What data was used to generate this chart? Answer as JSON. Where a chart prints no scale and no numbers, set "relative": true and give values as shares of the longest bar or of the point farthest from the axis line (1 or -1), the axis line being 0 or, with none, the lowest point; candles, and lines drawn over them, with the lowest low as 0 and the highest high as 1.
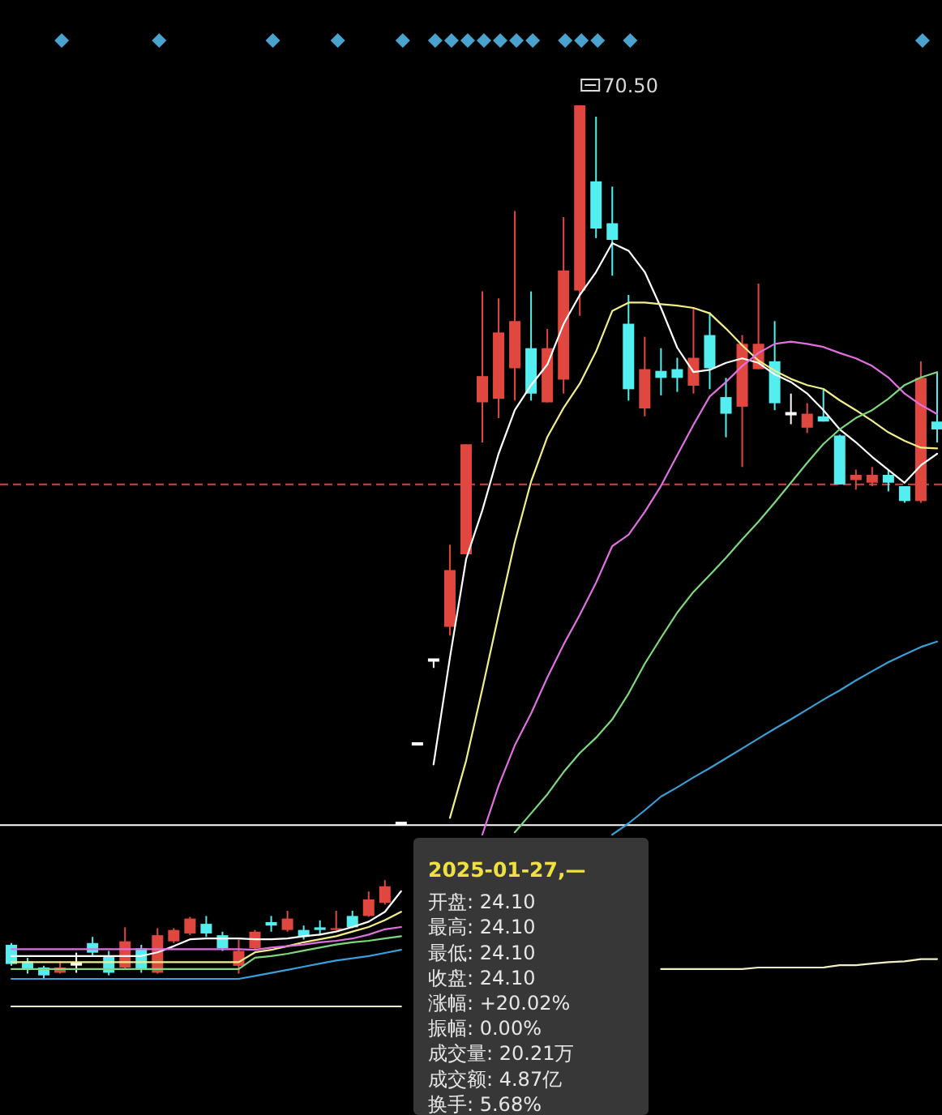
{
  "chart_data": [
    {
      "type": "candlestick",
      "relative": true,
      "categories": [
        null,
        null,
        null,
        null,
        null,
        null,
        null,
        null,
        null,
        null,
        null,
        null,
        null,
        null,
        null,
        null,
        null,
        null,
        null,
        null,
        null,
        null,
        null,
        null,
        null,
        null,
        null,
        null,
        null,
        null,
        null,
        null,
        null,
        null,
        null,
        null,
        null,
        null,
        null,
        null,
        null,
        null,
        null,
        null,
        null,
        null,
        null,
        null,
        null,
        null,
        null,
        null,
        null,
        null,
        null,
        null,
        null,
        null
      ],
      "ohlc": [
        [
          0.039,
          0.041,
          0.015,
          0.017
        ],
        [
          0.02,
          0.024,
          0.006,
          0.011
        ],
        [
          0.013,
          0.015,
          0,
          0.004
        ],
        [
          0.007,
          0.02,
          0.006,
          0.013
        ],
        [
          0.017,
          0.03,
          0.007,
          0.017
        ],
        [
          0.041,
          0.048,
          0.026,
          0.03
        ],
        [
          0.026,
          0.032,
          0.004,
          0.007
        ],
        [
          0.013,
          0.059,
          0.011,
          0.043
        ],
        [
          0.035,
          0.039,
          0.007,
          0.011
        ],
        [
          0.007,
          0.058,
          0.006,
          0.05
        ],
        [
          0.043,
          0.058,
          0.041,
          0.056
        ],
        [
          0.052,
          0.071,
          0.05,
          0.069
        ],
        [
          0.063,
          0.072,
          0.048,
          0.052
        ],
        [
          0.05,
          0.054,
          0.032,
          0.035
        ],
        [
          0.015,
          0.045,
          0.006,
          0.032
        ],
        [
          0.035,
          0.056,
          0.033,
          0.054
        ],
        [
          0.065,
          0.072,
          0.054,
          0.061
        ],
        [
          0.056,
          0.078,
          0.054,
          0.069
        ],
        [
          0.056,
          0.061,
          0.045,
          0.048
        ],
        [
          0.059,
          0.067,
          0.05,
          0.056
        ],
        [
          0.056,
          0.078,
          0.056,
          0.058
        ],
        [
          0.072,
          0.078,
          0.058,
          0.059
        ],
        [
          0.072,
          0.1,
          0.071,
          0.091
        ],
        [
          0.087,
          0.113,
          0.085,
          0.106
        ],
        [
          0.178,
          0.178,
          0.178,
          0.178
        ],
        [
          0.269,
          0.269,
          0.269,
          0.269
        ],
        [
          0.365,
          0.365,
          0.356,
          0.365
        ],
        [
          0.403,
          0.497,
          0.393,
          0.468
        ],
        [
          0.486,
          0.612,
          0.486,
          0.612
        ],
        [
          0.66,
          0.787,
          0.614,
          0.69
        ],
        [
          0.664,
          0.779,
          0.642,
          0.74
        ],
        [
          0.699,
          0.879,
          0.662,
          0.753
        ],
        [
          0.722,
          0.787,
          0.662,
          0.67
        ],
        [
          0.66,
          0.744,
          0.66,
          0.722
        ],
        [
          0.686,
          0.872,
          0.67,
          0.811
        ],
        [
          0.788,
          1,
          0.759,
          1
        ],
        [
          0.913,
          0.987,
          0.848,
          0.859
        ],
        [
          0.865,
          0.907,
          0.805,
          0.846
        ],
        [
          0.75,
          0.783,
          0.662,
          0.675
        ],
        [
          0.653,
          0.735,
          0.644,
          0.698
        ],
        [
          0.696,
          0.722,
          0.668,
          0.688
        ],
        [
          0.698,
          0.711,
          0.672,
          0.688
        ],
        [
          0.679,
          0.768,
          0.67,
          0.711
        ],
        [
          0.737,
          0.763,
          0.675,
          0.699
        ],
        [
          0.666,
          0.688,
          0.62,
          0.647
        ],
        [
          0.655,
          0.737,
          0.586,
          0.727
        ],
        [
          0.698,
          0.796,
          0.698,
          0.727
        ],
        [
          0.707,
          0.753,
          0.651,
          0.659
        ],
        [
          0.647,
          0.67,
          0.635,
          0.647
        ],
        [
          0.631,
          0.659,
          0.625,
          0.647
        ],
        [
          0.644,
          0.675,
          0.638,
          0.638
        ],
        [
          0.622,
          0.623,
          0.566,
          0.566
        ],
        [
          0.571,
          0.583,
          0.56,
          0.577
        ],
        [
          0.568,
          0.586,
          0.564,
          0.577
        ],
        [
          0.577,
          0.583,
          0.558,
          0.568
        ],
        [
          0.564,
          0.564,
          0.545,
          0.547
        ],
        [
          0.547,
          0.707,
          0.545,
          0.688
        ],
        [
          0.638,
          0.694,
          0.614,
          0.629
        ]
      ],
      "ref_lines": [
        {
          "axis": "y",
          "value": 0.566,
          "color": "#c8484a",
          "line_style": "dashed"
        },
        {
          "axis": "y",
          "value": 0.176,
          "color": "#ffffff",
          "line_style": "solid"
        }
      ],
      "annotations": [
        "70.50",
        "2025-01-27,—",
        "开盘: 24.10",
        "最高: 24.10",
        "最低: 24.10",
        "收盘: 24.10",
        "涨幅: +20.02%",
        "振幅: 0.00%",
        "成交量: 20.21万",
        "成交额: 4.87亿",
        "换手: 5.68%"
      ]
    },
    {
      "type": "line",
      "relative": true,
      "categories": [
        null,
        null,
        null,
        null,
        null,
        null,
        null,
        null,
        null,
        null,
        null,
        null,
        null,
        null,
        null,
        null,
        null,
        null,
        null,
        null,
        null,
        null,
        null,
        null,
        null,
        null,
        null,
        null,
        null,
        null,
        null,
        null,
        null,
        null,
        null,
        null,
        null,
        null,
        null,
        null,
        null,
        null,
        null,
        null,
        null,
        null,
        null,
        null,
        null,
        null,
        null,
        null,
        null,
        null,
        null,
        null,
        null,
        null
      ],
      "series": [
        {
          "color": "#ffffff",
          "values": [
            0.066,
            0.066,
            0.066,
            0.066,
            0.066,
            0.066,
            0.066,
            0.066,
            0.066,
            0.071,
            0.079,
            0.088,
            0.089,
            0.089,
            0.089,
            0.088,
            0.088,
            0.089,
            0.092,
            0.094,
            0.098,
            0.104,
            0.111,
            0.124,
            0.151,
            null,
            0.317,
            0.457,
            0.586,
            0.65,
            0.724,
            0.781,
            0.814,
            0.841,
            0.894,
            0.932,
            0.962,
            1,
            0.99,
            0.962,
            0.915,
            0.863,
            0.831,
            0.834,
            0.843,
            0.849,
            0.843,
            0.828,
            0.818,
            0.803,
            0.781,
            0.756,
            0.739,
            0.72,
            0.703,
            0.686,
            0.709,
            0.724
          ]
        },
        {
          "color": "#f2ee8a",
          "values": [
            0.058,
            0.058,
            0.058,
            0.058,
            0.058,
            0.058,
            0.058,
            0.058,
            0.058,
            0.058,
            0.058,
            0.058,
            0.058,
            0.058,
            0.058,
            0.071,
            0.074,
            0.079,
            0.084,
            0.088,
            0.092,
            0.098,
            0.104,
            0.113,
            0.124,
            null,
            null,
            0.247,
            0.322,
            0.416,
            0.513,
            0.608,
            0.688,
            0.746,
            0.784,
            0.816,
            0.858,
            0.911,
            0.922,
            0.922,
            0.92,
            0.918,
            0.915,
            0.908,
            0.888,
            0.866,
            0.846,
            0.833,
            0.822,
            0.814,
            0.809,
            0.794,
            0.781,
            0.767,
            0.752,
            0.741,
            0.732,
            0.731
          ]
        },
        {
          "color": "#e070e0",
          "values": [
            0.075,
            0.075,
            0.075,
            0.075,
            0.075,
            0.075,
            0.075,
            0.075,
            0.075,
            0.075,
            0.075,
            0.075,
            0.075,
            0.075,
            0.075,
            0.074,
            0.077,
            0.079,
            0.081,
            0.084,
            0.086,
            0.089,
            0.094,
            0.101,
            0.104,
            null,
            null,
            null,
            null,
            0.225,
            0.289,
            0.342,
            0.384,
            0.431,
            0.474,
            0.513,
            0.555,
            0.603,
            0.618,
            0.648,
            0.682,
            0.722,
            0.762,
            0.799,
            0.818,
            0.839,
            0.856,
            0.868,
            0.871,
            0.868,
            0.864,
            0.856,
            0.849,
            0.839,
            0.824,
            0.803,
            0.788,
            0.776
          ]
        },
        {
          "color": "#7ed87e",
          "values": [
            0.049,
            0.049,
            0.049,
            0.049,
            0.049,
            0.049,
            0.049,
            0.049,
            0.049,
            0.049,
            0.049,
            0.049,
            0.049,
            0.049,
            0.049,
            0.064,
            0.066,
            0.069,
            0.073,
            0.077,
            0.081,
            0.084,
            0.086,
            0.089,
            0.092,
            null,
            null,
            null,
            null,
            null,
            null,
            0.228,
            0.253,
            0.278,
            0.307,
            0.332,
            0.352,
            0.376,
            0.41,
            0.449,
            0.483,
            0.516,
            0.543,
            0.565,
            0.588,
            0.612,
            0.635,
            0.66,
            0.686,
            0.712,
            0.737,
            0.756,
            0.771,
            0.781,
            0.796,
            0.814,
            0.824,
            0.831
          ]
        },
        {
          "color": "#3a9fd6",
          "values": [
            0.036,
            0.036,
            0.036,
            0.036,
            0.036,
            0.036,
            0.036,
            0.036,
            0.036,
            0.036,
            0.036,
            0.036,
            0.036,
            0.036,
            0.036,
            0.04,
            0.044,
            0.048,
            0.052,
            0.056,
            0.06,
            0.063,
            0.066,
            0.07,
            0.074,
            null,
            null,
            null,
            null,
            null,
            null,
            null,
            null,
            null,
            null,
            null,
            null,
            0.225,
            0.24,
            0.257,
            0.275,
            0.287,
            0.3,
            0.312,
            0.325,
            0.338,
            0.351,
            0.364,
            0.376,
            0.389,
            0.402,
            0.414,
            0.427,
            0.439,
            0.451,
            0.461,
            0.471,
            0.478
          ]
        },
        {
          "color": "#f3efc4",
          "values": [
            0,
            0,
            0,
            0,
            0,
            0,
            0,
            0,
            0,
            0,
            0,
            0,
            0,
            0,
            0,
            0,
            0,
            0,
            0,
            0,
            0,
            0,
            0,
            0,
            0,
            null,
            null,
            null,
            null,
            null,
            null,
            null,
            null,
            null,
            null,
            null,
            null,
            null,
            null,
            null,
            0.049,
            0.049,
            0.049,
            0.049,
            0.049,
            0.049,
            0.051,
            0.051,
            0.051,
            0.051,
            0.051,
            0.054,
            0.054,
            0.056,
            0.058,
            0.059,
            0.062,
            0.062
          ]
        }
      ]
    }
  ]
}
